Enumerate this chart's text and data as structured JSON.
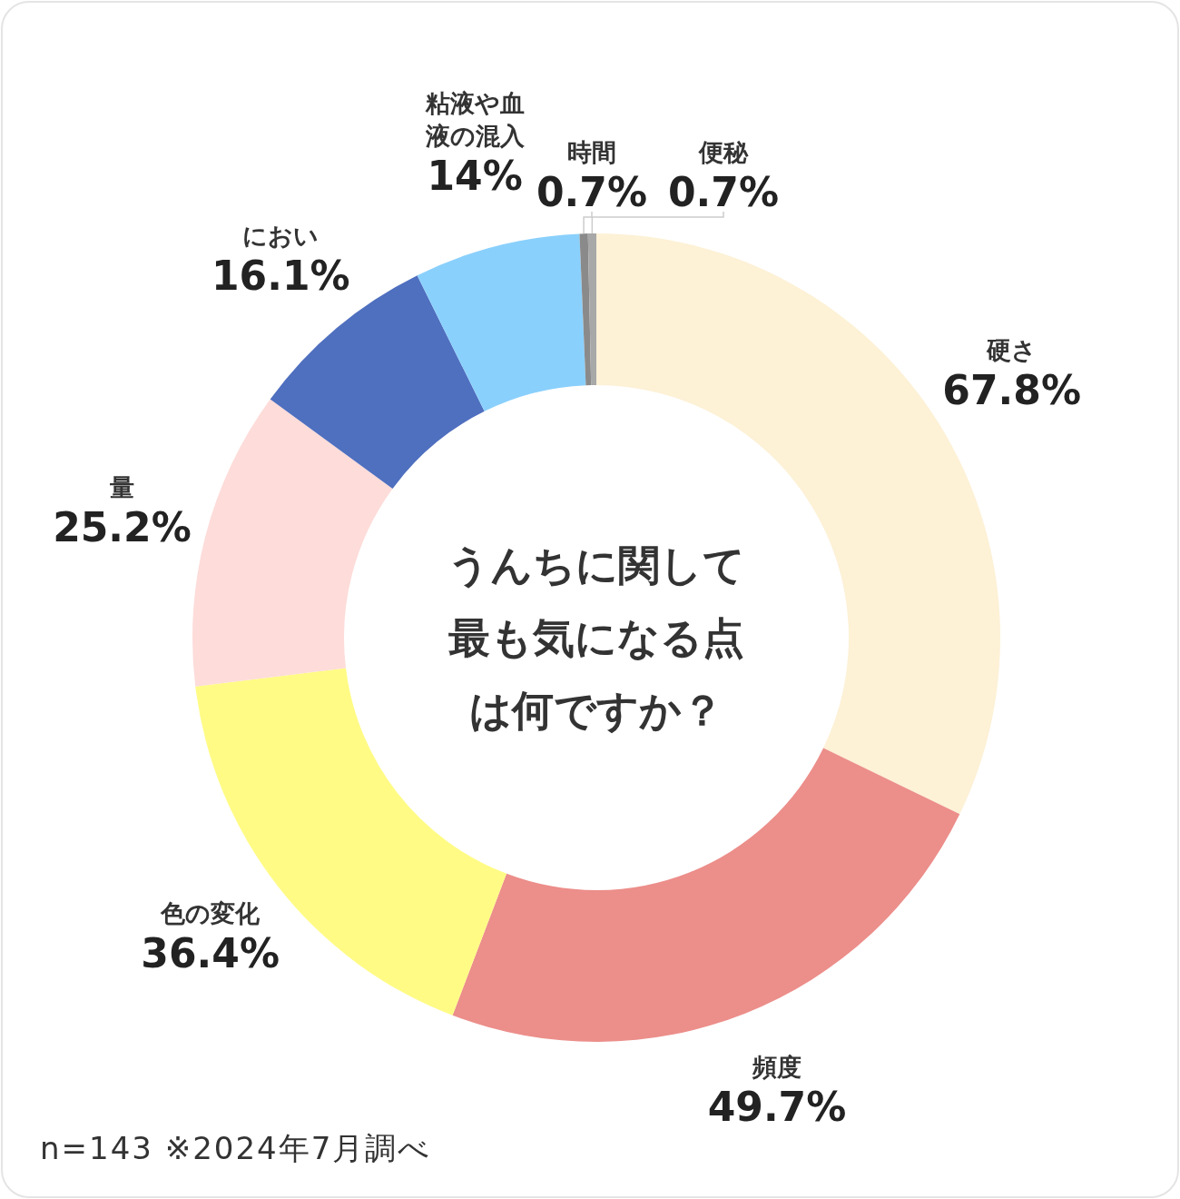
{
  "chart_data": {
    "type": "donut",
    "title": "うんちに関して最も気になる点は何ですか？",
    "categories": [
      "硬さ",
      "頻度",
      "色の変化",
      "量",
      "におい",
      "粘液や血液の混入",
      "時間",
      "便秘"
    ],
    "values": [
      67.8,
      49.7,
      36.4,
      25.2,
      16.1,
      14,
      0.7,
      0.7
    ],
    "colors": [
      "#fdf1d6",
      "#ec8e8a",
      "#fffb85",
      "#fddcd9",
      "#4f6fbf",
      "#8ad0fc",
      "#8a8a8a",
      "#a8a8a8"
    ],
    "value_labels": [
      "67.8%",
      "49.7%",
      "36.4%",
      "25.2%",
      "16.1%",
      "14%",
      "0.7%",
      "0.7%"
    ],
    "annotations": [
      "n=143 ※2024年7月調べ"
    ]
  }
}
